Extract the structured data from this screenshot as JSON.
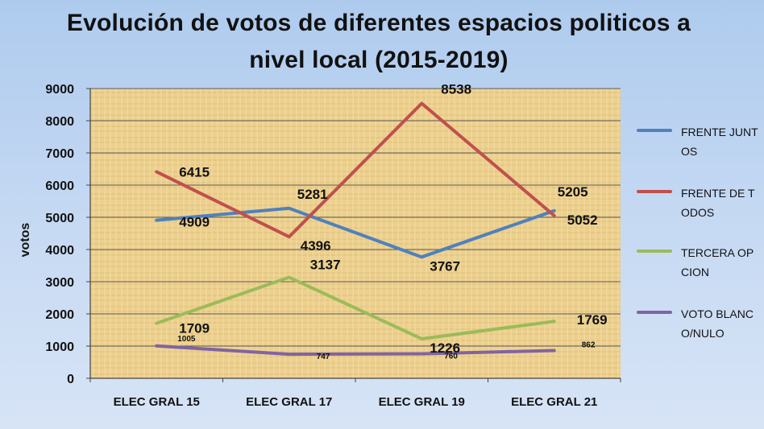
{
  "chart_data": {
    "type": "line",
    "title": "Evolución de votos de diferentes espacios politicos a nivel local (2015-2019)",
    "xlabel": "",
    "ylabel": "votos",
    "categories": [
      "ELEC GRAL 15",
      "ELEC GRAL 17",
      "ELEC GRAL 19",
      "ELEC GRAL 21"
    ],
    "ylim": [
      0,
      9000
    ],
    "yticks": [
      0,
      1000,
      2000,
      3000,
      4000,
      5000,
      6000,
      7000,
      8000,
      9000
    ],
    "grid": true,
    "legend_position": "right",
    "series": [
      {
        "name": "FRENTE JUNTOS",
        "values": [
          4909,
          5281,
          3767,
          5205
        ],
        "color": "#4f81bd"
      },
      {
        "name": "FRENTE DE TODOS",
        "values": [
          6415,
          4396,
          8538,
          5052
        ],
        "color": "#c0504d"
      },
      {
        "name": "TERCERA OPCION",
        "values": [
          1709,
          3137,
          1226,
          1769
        ],
        "color": "#9bbb59"
      },
      {
        "name": "VOTO BLANCO/NULO",
        "values": [
          1005,
          747,
          760,
          862
        ],
        "color": "#8064a2"
      }
    ]
  }
}
